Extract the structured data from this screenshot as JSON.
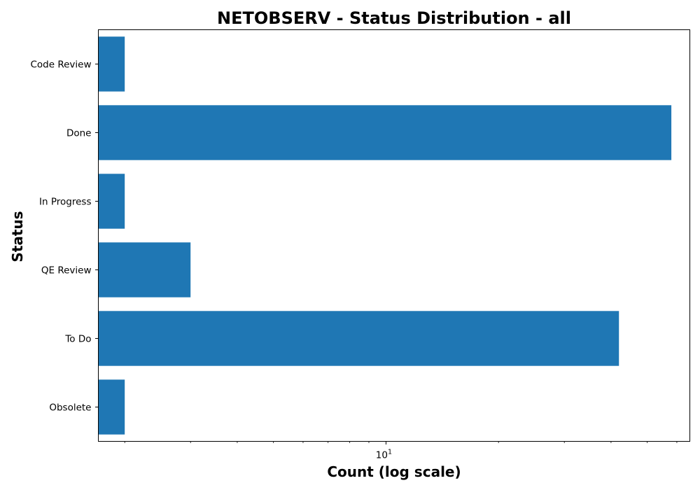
{
  "chart_data": {
    "type": "bar",
    "orientation": "horizontal",
    "title": "NETOBSERV - Status Distribution - all",
    "xlabel": "Count (log scale)",
    "ylabel": "Status",
    "x_scale": "log",
    "xlim": [
      1.7,
      65
    ],
    "x_major_ticks": [
      {
        "value": 10,
        "base": "10",
        "exponent": "1"
      }
    ],
    "x_minor_ticks": [
      2,
      3,
      4,
      5,
      6,
      7,
      8,
      9,
      20,
      30,
      40,
      50,
      60
    ],
    "categories": [
      "Code Review",
      "Done",
      "In Progress",
      "QE Review",
      "To Do",
      "Obsolete"
    ],
    "values": [
      2,
      58,
      2,
      3,
      42,
      2
    ],
    "bar_color": "#1f77b4",
    "grid": false,
    "legend": false
  }
}
